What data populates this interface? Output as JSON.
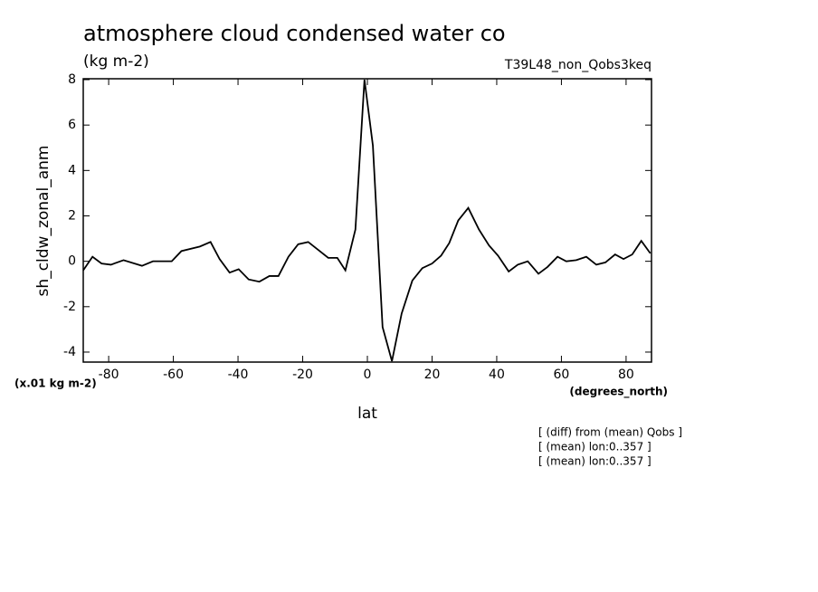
{
  "chart_data": {
    "type": "line",
    "title": "atmosphere cloud condensed water co",
    "subtitle": "(kg m-2)",
    "run_label": "T39L48_non_Qobs3keq",
    "y_label": "sh_cldw_zonal_anm",
    "y_units": "(x.01 kg m-2)",
    "x_units": "(degrees_north)",
    "x_label": "lat",
    "annotations": [
      "[ (diff) from (mean) Qobs ]",
      "[ (mean) lon:0..357 ]",
      "[ (mean) lon:0..357 ]"
    ],
    "x": [
      -87.86,
      -85,
      -82.2,
      -79.3,
      -75.4,
      -69.7,
      -66.3,
      -60.5,
      -57.5,
      -51.8,
      -48.5,
      -45.7,
      -42.6,
      -39.8,
      -36.7,
      -33.4,
      -30.3,
      -27.5,
      -24.4,
      -21.4,
      -18.3,
      -15.2,
      -12.1,
      -9.3,
      -6.8,
      -3.7,
      -0.9,
      1.7,
      4.7,
      7.6,
      10.6,
      13.9,
      17,
      20,
      22.8,
      25.3,
      28.1,
      31.2,
      34.5,
      37.6,
      40.4,
      43.7,
      46.5,
      49.6,
      52.9,
      55.7,
      58.8,
      61.5,
      64.6,
      67.7,
      70.8,
      73.6,
      76.6,
      79.2,
      81.9,
      84.7,
      87.5
    ],
    "series": [
      {
        "color": "#000000",
        "values": [
          -0.4,
          0.2,
          -0.1,
          -0.15,
          0.05,
          -0.2,
          0,
          0,
          0.45,
          0.65,
          0.85,
          0.1,
          -0.5,
          -0.35,
          -0.8,
          -0.9,
          -0.65,
          -0.65,
          0.2,
          0.75,
          0.85,
          0.5,
          0.15,
          0.15,
          -0.4,
          1.4,
          8.0,
          5.1,
          -2.9,
          -4.4,
          -2.3,
          -0.85,
          -0.3,
          -0.1,
          0.25,
          0.8,
          1.8,
          2.35,
          1.4,
          0.7,
          0.25,
          -0.45,
          -0.15,
          0,
          -0.55,
          -0.25,
          0.2,
          0,
          0.05,
          0.2,
          -0.15,
          -0.05,
          0.3,
          0.1,
          0.3,
          0.9,
          0.35
        ]
      }
    ],
    "xlim": [
      -87.86,
      87.86
    ],
    "ylim": [
      -4.44,
      8.04
    ],
    "xticks": [
      -80,
      -60,
      -40,
      -20,
      0,
      20,
      40,
      60,
      80
    ],
    "yticks": [
      -4,
      -2,
      0,
      2,
      4,
      6,
      8
    ]
  }
}
